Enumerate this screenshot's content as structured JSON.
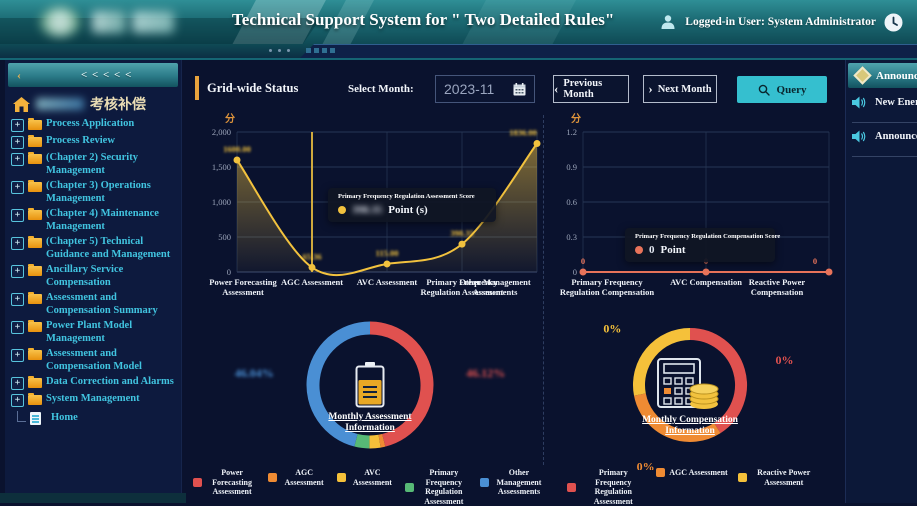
{
  "header": {
    "title": "Technical Support System for \" Two Detailed Rules\"",
    "logged_in_user": "Logged-in User: System Administrator"
  },
  "sidebar": {
    "collapse_back_glyph": "‹",
    "collapse_chevrons": "< < < < <",
    "title": "考核补偿",
    "expand_glyph": "+",
    "items": [
      {
        "label": "Process Application"
      },
      {
        "label": "Process Review"
      },
      {
        "label": "(Chapter 2) Security Management"
      },
      {
        "label": "(Chapter 3) Operations Management"
      },
      {
        "label": "(Chapter 4) Maintenance Management"
      },
      {
        "label": "(Chapter 5) Technical Guidance and Management"
      },
      {
        "label": "Ancillary Service Compensation"
      },
      {
        "label": "Assessment and Compensation Summary"
      },
      {
        "label": "Power Plant Model Management"
      },
      {
        "label": "Assessment and Compensation Model"
      },
      {
        "label": "Data Correction and Alarms"
      },
      {
        "label": "System Management"
      }
    ],
    "home_leaf": "Home"
  },
  "toolbar": {
    "section_title": "Grid-wide Status",
    "select_month_label": "Select Month:",
    "month_value": "2023-11",
    "prev_chevron": "‹",
    "prev_button": "Previous Month",
    "next_chevron": "›",
    "next_button": "Next Month",
    "query_button": "Query"
  },
  "right_panel": {
    "header": "Announcements",
    "items": [
      "New Energy",
      "Announcement"
    ]
  },
  "chart_data": [
    {
      "id": "assessment-line",
      "type": "line",
      "unit": "分",
      "categories": [
        "Power Forecasting Assessment",
        "AGC Assessment",
        "AVC Assessment",
        "Primary Frequency Regulation Assessment",
        "Other Management Assessments"
      ],
      "values": [
        1600.0,
        65.36,
        115.0,
        398.35,
        1836.0
      ],
      "value_labels": [
        "1600.00",
        "65.36",
        "115.00",
        "398.35",
        "1836.00"
      ],
      "labels_blurred": true,
      "ylim": [
        0,
        2000
      ],
      "yticks": [
        0,
        500,
        1000,
        1500,
        2000
      ],
      "ytick_labels": [
        "0",
        "500",
        "1,000",
        "1,500",
        "2,000"
      ],
      "color": "#f2c23e",
      "axis_pointer_index": 1,
      "grid": true,
      "tooltip": {
        "title": "Primary Frequency Regulation Assessment Score",
        "value": "398.35",
        "value_blurred": true,
        "suffix": "Point (s)"
      }
    },
    {
      "id": "compensation-line",
      "type": "line",
      "unit": "分",
      "categories": [
        "Primary Frequency Regulation Compensation",
        "AVC Compensation",
        "Reactive Power Compensation"
      ],
      "values": [
        0,
        0,
        0
      ],
      "value_labels": [
        "0",
        "0",
        "0"
      ],
      "labels_blurred": false,
      "ylim": [
        0,
        1.2
      ],
      "yticks": [
        0,
        0.3,
        0.6,
        0.9,
        1.2
      ],
      "ytick_labels": [
        "0",
        "0.3",
        "0.6",
        "0.9",
        "1.2"
      ],
      "color": "#e8735a",
      "axis_pointer_index": null,
      "grid": true,
      "tooltip": {
        "title": "Primary Frequency Regulation Compensation Score",
        "value": "0",
        "value_blurred": false,
        "suffix": "Point"
      }
    },
    {
      "id": "assessment-donut",
      "type": "pie",
      "center_title": "Monthly Assessment Information",
      "slices": [
        {
          "name": "Power Forecasting Assessment",
          "value": 46.12,
          "arc": 46.12,
          "color": "#e0514f",
          "label": "46.12%",
          "label_blurred": true
        },
        {
          "name": "AGC Assessment",
          "value": 1.19,
          "arc": 1.19,
          "color": "#ef8b33",
          "label": "",
          "label_blurred": false
        },
        {
          "name": "AVC Assessment",
          "value": 2.86,
          "arc": 2.86,
          "color": "#f5c13a",
          "label": "2.86%",
          "label_blurred": true
        },
        {
          "name": "Primary Frequency Regulation Assessment",
          "value": 3.79,
          "arc": 3.79,
          "color": "#57b976",
          "label": "3.79%",
          "label_blurred": true
        },
        {
          "name": "Other Management Assessments",
          "value": 46.04,
          "arc": 46.04,
          "color": "#4a8fd4",
          "label": "46.04%",
          "label_blurred": true
        }
      ]
    },
    {
      "id": "compensation-donut",
      "type": "pie",
      "center_title": "Monthly Compensation Information",
      "slices": [
        {
          "name": "Primary Frequency Regulation Assessment",
          "value": 0,
          "arc": 41,
          "color": "#e0514f",
          "label": "0%",
          "label_blurred": false
        },
        {
          "name": "AGC Assessment",
          "value": 0,
          "arc": 31,
          "color": "#ef8b33",
          "label": "0%",
          "label_blurred": false
        },
        {
          "name": "Reactive Power Assessment",
          "value": 0,
          "arc": 28,
          "color": "#f5c13a",
          "label": "0%",
          "label_blurred": false
        }
      ]
    }
  ]
}
